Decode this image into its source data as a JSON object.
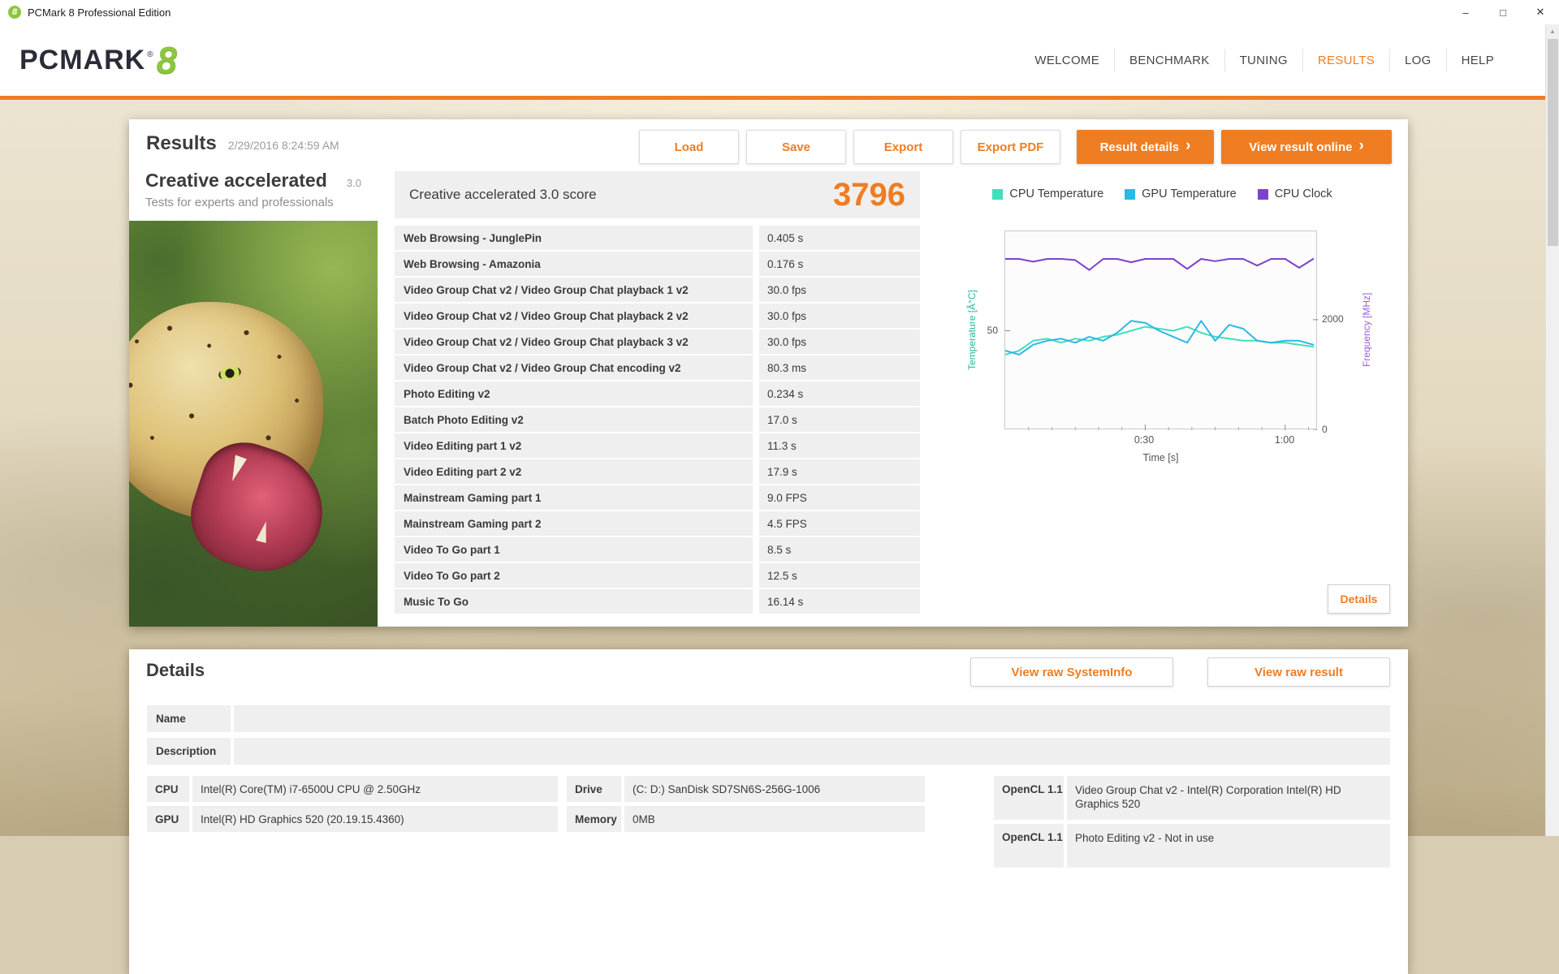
{
  "window": {
    "title": "PCMark 8 Professional Edition",
    "app_icon_glyph": "8",
    "controls": {
      "minimize": "–",
      "maximize": "□",
      "close": "✕"
    },
    "scrollbar_up_arrow": "▲"
  },
  "header": {
    "logo_text": "PCMARK",
    "logo_mark": "®",
    "logo_number": "8",
    "nav": [
      {
        "label": "WELCOME"
      },
      {
        "label": "BENCHMARK"
      },
      {
        "label": "TUNING"
      },
      {
        "label": "RESULTS"
      },
      {
        "label": "LOG"
      },
      {
        "label": "HELP"
      }
    ]
  },
  "results": {
    "title": "Results",
    "timestamp": "2/29/2016 8:24:59 AM",
    "toolbar": {
      "load": "Load",
      "save": "Save",
      "export": "Export",
      "export_pdf": "Export PDF",
      "result_details": "Result details",
      "view_result_online": "View result online",
      "chevron": "›"
    },
    "test": {
      "name": "Creative accelerated",
      "version": "3.0",
      "subtitle": "Tests for experts and professionals"
    },
    "score": {
      "label": "Creative accelerated 3.0 score",
      "value": "3796"
    },
    "rows": [
      {
        "label": "Web Browsing - JunglePin",
        "value": "0.405 s"
      },
      {
        "label": "Web Browsing - Amazonia",
        "value": "0.176 s"
      },
      {
        "label": "Video Group Chat v2 / Video Group Chat playback 1 v2",
        "value": "30.0 fps"
      },
      {
        "label": "Video Group Chat v2 / Video Group Chat playback 2 v2",
        "value": "30.0 fps"
      },
      {
        "label": "Video Group Chat v2 / Video Group Chat playback 3 v2",
        "value": "30.0 fps"
      },
      {
        "label": "Video Group Chat v2 / Video Group Chat encoding v2",
        "value": "80.3 ms"
      },
      {
        "label": "Photo Editing v2",
        "value": "0.234 s"
      },
      {
        "label": "Batch Photo Editing v2",
        "value": "17.0 s"
      },
      {
        "label": "Video Editing part 1 v2",
        "value": "11.3 s"
      },
      {
        "label": "Video Editing part 2 v2",
        "value": "17.9 s"
      },
      {
        "label": "Mainstream Gaming part 1",
        "value": "9.0 FPS"
      },
      {
        "label": "Mainstream Gaming part 2",
        "value": "4.5 FPS"
      },
      {
        "label": "Video To Go part 1",
        "value": "8.5 s"
      },
      {
        "label": "Video To Go part 2",
        "value": "12.5 s"
      },
      {
        "label": "Music To Go",
        "value": "16.14 s"
      }
    ],
    "details_button": "Details"
  },
  "chart_data": {
    "type": "line",
    "x_axis": {
      "label": "Time [s]",
      "range_s": [
        0,
        67
      ],
      "tick_labels": [
        {
          "t": 30,
          "label": "0:30"
        },
        {
          "t": 60,
          "label": "1:00"
        }
      ],
      "minor_ticks_s": [
        5,
        10,
        15,
        20,
        25,
        35,
        40,
        45,
        50,
        55,
        65
      ]
    },
    "left_axis": {
      "label": "Temperature [Â°C]",
      "range": [
        0,
        100
      ],
      "ticks": [
        {
          "v": 50,
          "label": "50"
        }
      ],
      "color": "#2ab6a0"
    },
    "right_axis": {
      "label": "Frequency [MHz]",
      "range": [
        0,
        3600
      ],
      "ticks": [
        {
          "v": 2000,
          "label": "2000"
        },
        {
          "v": 0,
          "label": "0"
        }
      ],
      "color": "#9a5fd4"
    },
    "legend_position": "top",
    "grid": false,
    "series": [
      {
        "name": "CPU Temperature",
        "axis": "left",
        "color": "#3fe0bc",
        "x": [
          0,
          3,
          6,
          9,
          12,
          15,
          18,
          21,
          24,
          27,
          30,
          33,
          36,
          39,
          42,
          45,
          48,
          51,
          54,
          57,
          60,
          63,
          66
        ],
        "y": [
          38,
          40,
          45,
          46,
          44,
          46,
          45,
          47,
          48,
          50,
          52,
          51,
          50,
          52,
          49,
          47,
          46,
          45,
          45,
          44,
          44,
          43,
          42
        ]
      },
      {
        "name": "GPU Temperature",
        "axis": "left",
        "color": "#2bb8e8",
        "x": [
          0,
          3,
          6,
          9,
          12,
          15,
          18,
          21,
          24,
          27,
          30,
          33,
          36,
          39,
          42,
          45,
          48,
          51,
          54,
          57,
          60,
          63,
          66
        ],
        "y": [
          40,
          38,
          43,
          45,
          46,
          44,
          47,
          45,
          49,
          55,
          54,
          50,
          47,
          44,
          55,
          45,
          53,
          51,
          45,
          44,
          45,
          45,
          43
        ]
      },
      {
        "name": "CPU Clock",
        "axis": "right",
        "color": "#7d42c8",
        "x": [
          0,
          3,
          6,
          9,
          12,
          15,
          18,
          21,
          24,
          27,
          30,
          33,
          36,
          39,
          42,
          45,
          48,
          51,
          54,
          57,
          60,
          63,
          66
        ],
        "y": [
          3100,
          3100,
          3050,
          3100,
          3100,
          3080,
          2900,
          3100,
          3100,
          3040,
          3100,
          3100,
          3100,
          2920,
          3100,
          3060,
          3100,
          3100,
          2980,
          3100,
          3100,
          2940,
          3100
        ]
      }
    ]
  },
  "details": {
    "title": "Details",
    "view_raw_systeminfo": "View raw SystemInfo",
    "view_raw_result": "View raw result",
    "meta": [
      {
        "label": "Name",
        "value": ""
      },
      {
        "label": "Description",
        "value": ""
      }
    ],
    "system": [
      {
        "label": "CPU",
        "value": "Intel(R) Core(TM) i7-6500U CPU @ 2.50GHz"
      },
      {
        "label": "GPU",
        "value": "Intel(R) HD Graphics 520 (20.19.15.4360)"
      }
    ],
    "storage": [
      {
        "label": "Drive",
        "value": "(C: D:) SanDisk SD7SN6S-256G-1006"
      },
      {
        "label": "Memory",
        "value": "0MB"
      }
    ],
    "opencl": [
      {
        "label": "OpenCL 1.1",
        "value": "Video Group Chat v2 - Intel(R) Corporation Intel(R) HD Graphics 520"
      },
      {
        "label": "OpenCL 1.1",
        "value": "Photo Editing v2 - Not in use"
      }
    ]
  },
  "colors": {
    "accent": "#ef7d22",
    "logo_green": "#8dc63f",
    "row_bg": "#efefef"
  }
}
